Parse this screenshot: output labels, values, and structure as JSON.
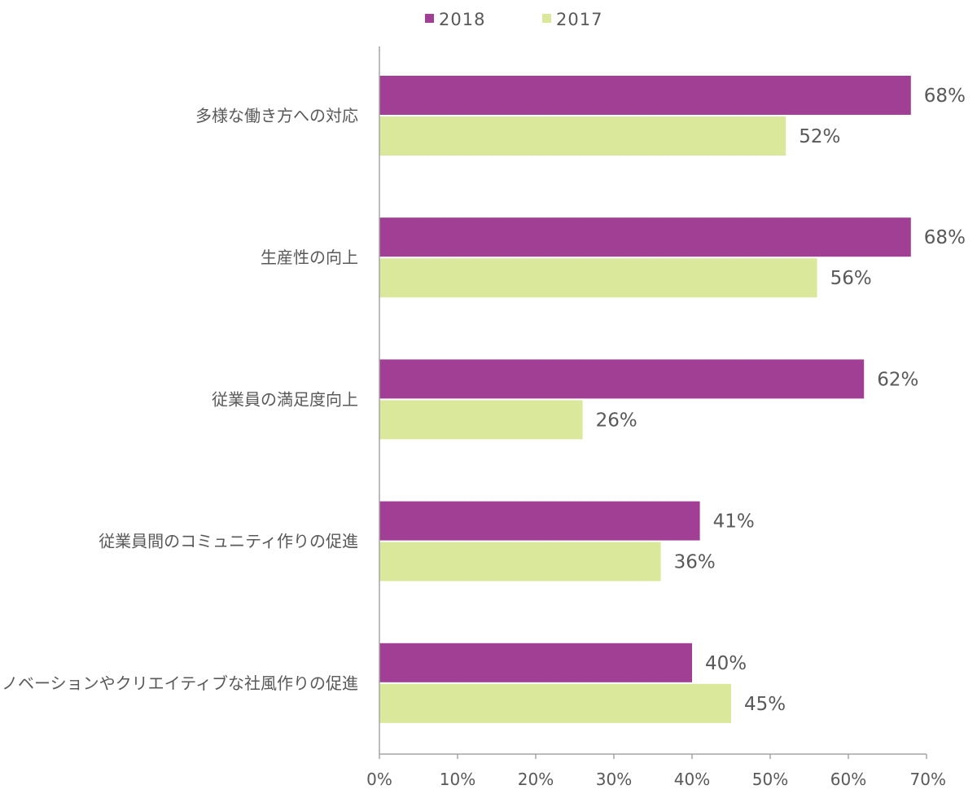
{
  "chart_data": {
    "type": "bar",
    "orientation": "horizontal",
    "categories": [
      "多様な働き方への対応",
      "生産性の向上",
      "従業員の満足度向上",
      "従業員間のコミュニティ作りの促進",
      "イノベーションやクリエイティブな社風作りの促進"
    ],
    "series": [
      {
        "name": "2018",
        "color": "#A03F94",
        "values": [
          68,
          68,
          62,
          41,
          40
        ],
        "labels": [
          "68%",
          "68%",
          "62%",
          "41%",
          "40%"
        ]
      },
      {
        "name": "2017",
        "color": "#D9E89A",
        "values": [
          52,
          56,
          26,
          36,
          45
        ],
        "labels": [
          "52%",
          "56%",
          "26%",
          "36%",
          "45%"
        ]
      }
    ],
    "xlim": [
      0,
      70
    ],
    "xticks": [
      0,
      10,
      20,
      30,
      40,
      50,
      60,
      70
    ],
    "xtick_labels": [
      "0%",
      "10%",
      "20%",
      "30%",
      "40%",
      "50%",
      "60%",
      "70%"
    ],
    "legend_position": "top",
    "grid": false
  }
}
